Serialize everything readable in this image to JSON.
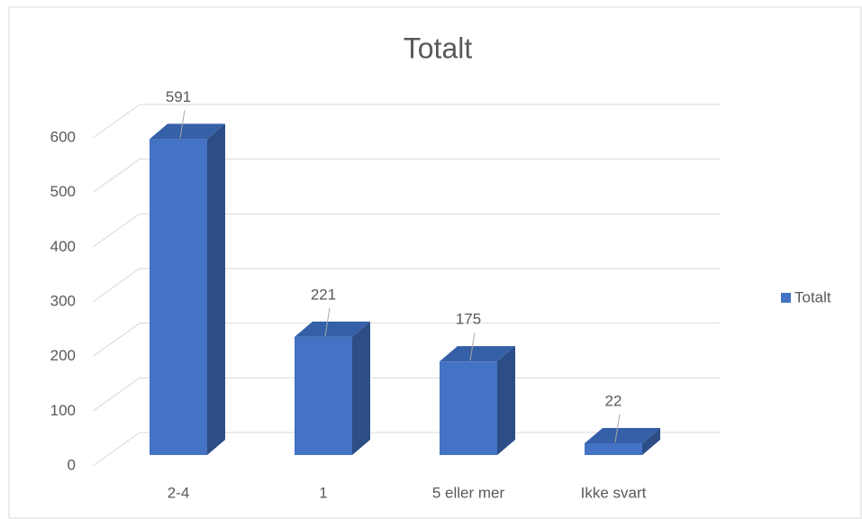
{
  "chart_data": {
    "type": "bar3d",
    "title": "Totalt",
    "categories": [
      "2-4",
      "1",
      "5 eller mer",
      "Ikke svart"
    ],
    "series": [
      {
        "name": "Totalt",
        "color": "#4472c4",
        "values": [
          591,
          221,
          175,
          22
        ]
      }
    ],
    "ylim": [
      0,
      600
    ],
    "yticks": [
      0,
      100,
      200,
      300,
      400,
      500,
      600
    ],
    "grid": true,
    "legend": "right"
  }
}
